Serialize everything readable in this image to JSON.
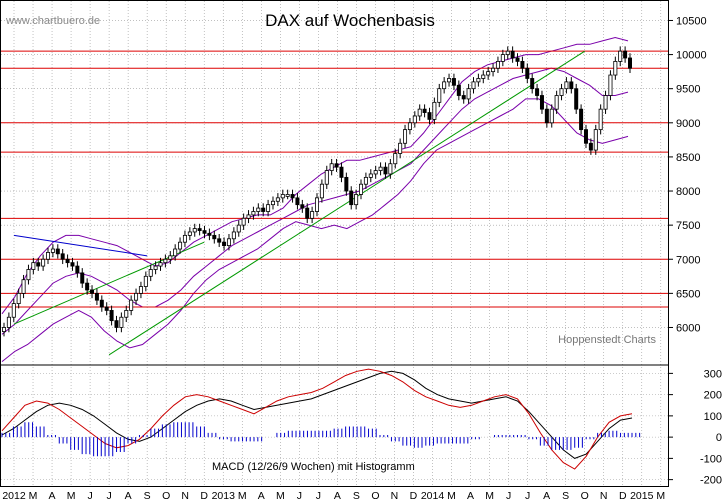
{
  "watermark": "www.chartbuero.de",
  "chart_data": [
    {
      "type": "candlestick",
      "title": "DAX auf Wochenbasis",
      "source_note": "Hoppenstedt Charts",
      "y_axis_position": "right",
      "yticks": [
        6000,
        6500,
        7000,
        7500,
        8000,
        8500,
        9000,
        9500,
        10000,
        10500
      ],
      "ylim": [
        5450,
        10800
      ],
      "grid": true,
      "x_labels": [
        "2012",
        "M",
        "A",
        "M",
        "J",
        "J",
        "A",
        "S",
        "O",
        "N",
        "D",
        "2013",
        "M",
        "A",
        "M",
        "J",
        "J",
        "A",
        "S",
        "O",
        "N",
        "D",
        "2014",
        "M",
        "A",
        "M",
        "J",
        "J",
        "A",
        "S",
        "O",
        "N",
        "D",
        "2015",
        "M"
      ],
      "weekly_close_approx": [
        6000,
        6150,
        6350,
        6500,
        6700,
        6850,
        6950,
        6900,
        7000,
        7100,
        7150,
        7080,
        7000,
        6950,
        6900,
        6800,
        6650,
        6550,
        6500,
        6400,
        6300,
        6250,
        6100,
        6000,
        6150,
        6250,
        6400,
        6500,
        6600,
        6750,
        6850,
        6900,
        6950,
        7000,
        7050,
        7150,
        7250,
        7350,
        7400,
        7450,
        7420,
        7380,
        7350,
        7300,
        7250,
        7200,
        7300,
        7400,
        7500,
        7600,
        7650,
        7700,
        7750,
        7700,
        7800,
        7850,
        7900,
        7950,
        7950,
        7900,
        7800,
        7750,
        7600,
        7700,
        7900,
        8100,
        8300,
        8400,
        8350,
        8200,
        8000,
        7800,
        7950,
        8100,
        8200,
        8250,
        8300,
        8350,
        8250,
        8400,
        8550,
        8700,
        8900,
        9000,
        9100,
        9200,
        9150,
        9050,
        9300,
        9500,
        9600,
        9650,
        9550,
        9400,
        9350,
        9500,
        9600,
        9650,
        9700,
        9750,
        9800,
        9900,
        10000,
        10050,
        9950,
        9900,
        9800,
        9650,
        9500,
        9400,
        9200,
        9000,
        9200,
        9400,
        9500,
        9600,
        9500,
        9200,
        8900,
        8700,
        8600,
        8900,
        9200,
        9400,
        9700,
        9900,
        10050,
        9950,
        9800
      ],
      "support_resistance_levels": [
        10050,
        9800,
        9000,
        8570,
        7600,
        7000,
        6500,
        6300
      ],
      "bollinger_bands": [
        {
          "name": "upper",
          "values": [
            6200,
            6450,
            6800,
            7050,
            7250,
            7350,
            7350,
            7300,
            7250,
            7200,
            7100,
            7000,
            6900,
            6950,
            7100,
            7250,
            7350,
            7450,
            7550,
            7600,
            7650,
            7650,
            7750,
            7950,
            8100,
            8250,
            8350,
            8450,
            8450,
            8500,
            8550,
            8600,
            8650,
            8850,
            9100,
            9350,
            9600,
            9750,
            9850,
            9900,
            9950,
            10000,
            10000,
            10050,
            10100,
            10150,
            10150,
            10200,
            10250,
            10200
          ]
        },
        {
          "name": "middle",
          "values": [
            5900,
            6050,
            6250,
            6450,
            6650,
            6750,
            6800,
            6750,
            6650,
            6550,
            6400,
            6300,
            6300,
            6400,
            6550,
            6750,
            6900,
            7050,
            7200,
            7300,
            7400,
            7500,
            7600,
            7700,
            7800,
            7850,
            7900,
            7950,
            8000,
            8100,
            8200,
            8300,
            8400,
            8600,
            8800,
            9000,
            9200,
            9350,
            9450,
            9550,
            9650,
            9700,
            9750,
            9800,
            9750,
            9650,
            9550,
            9400,
            9400,
            9450
          ]
        },
        {
          "name": "lower",
          "values": [
            5500,
            5650,
            5750,
            5900,
            6050,
            6150,
            6250,
            6150,
            5950,
            5800,
            5700,
            5750,
            5900,
            6050,
            6250,
            6500,
            6700,
            6850,
            6950,
            7050,
            7150,
            7300,
            7450,
            7550,
            7500,
            7450,
            7500,
            7450,
            7550,
            7650,
            7800,
            7950,
            8150,
            8400,
            8600,
            8700,
            8800,
            8900,
            9000,
            9100,
            9200,
            9350,
            9350,
            9250,
            9050,
            8850,
            8750,
            8700,
            8750,
            8800
          ]
        }
      ],
      "trendlines": [
        {
          "name": "green-uptrend-1",
          "color": "#009900",
          "from": [
            "2012-06",
            5600
          ],
          "to": [
            "2014-07",
            10050
          ]
        },
        {
          "name": "green-uptrend-2",
          "color": "#009900",
          "from": [
            "2012-01",
            6050
          ],
          "to": [
            "2012-11",
            7250
          ]
        },
        {
          "name": "blue-downtrend",
          "color": "#0000cc",
          "from": [
            "2012-01",
            7350
          ],
          "to": [
            "2012-08",
            7050
          ]
        }
      ]
    },
    {
      "type": "line",
      "title": "MACD (12/26/9 Wochen) mit Histogramm",
      "y_axis_position": "right",
      "yticks": [
        -200,
        -100,
        0,
        100,
        200,
        300
      ],
      "ylim": [
        -230,
        330
      ],
      "series": [
        {
          "color": "#000000",
          "values": [
            10,
            40,
            80,
            120,
            150,
            160,
            150,
            130,
            100,
            60,
            20,
            -10,
            -20,
            0,
            40,
            80,
            120,
            150,
            170,
            180,
            170,
            150,
            130,
            140,
            150,
            160,
            170,
            180,
            200,
            220,
            240,
            260,
            280,
            300,
            310,
            300,
            270,
            230,
            200,
            180,
            170,
            160,
            170,
            180,
            190,
            170,
            120,
            60,
            0,
            -60,
            -100,
            -80,
            -20,
            40,
            80,
            90
          ]
        },
        {
          "color": "#cc0000",
          "values": [
            30,
            90,
            150,
            170,
            160,
            130,
            90,
            50,
            10,
            -30,
            -50,
            -40,
            -10,
            40,
            100,
            150,
            190,
            200,
            190,
            170,
            150,
            130,
            110,
            140,
            170,
            190,
            200,
            210,
            230,
            260,
            290,
            310,
            320,
            310,
            290,
            260,
            220,
            190,
            170,
            150,
            140,
            150,
            170,
            190,
            200,
            180,
            110,
            20,
            -60,
            -120,
            -150,
            -90,
            0,
            70,
            100,
            110
          ]
        },
        {
          "name": "Histogramm",
          "color": "#0000cc",
          "values": [
            20,
            50,
            70,
            50,
            10,
            -30,
            -60,
            -80,
            -90,
            -90,
            -70,
            -30,
            10,
            40,
            60,
            70,
            70,
            50,
            20,
            -10,
            -20,
            -20,
            -20,
            0,
            20,
            30,
            30,
            30,
            30,
            40,
            50,
            50,
            40,
            10,
            -20,
            -40,
            -50,
            -40,
            -30,
            -30,
            -30,
            -10,
            0,
            10,
            10,
            10,
            -10,
            -40,
            -60,
            -60,
            -50,
            -10,
            20,
            30,
            20,
            20
          ]
        }
      ]
    }
  ]
}
